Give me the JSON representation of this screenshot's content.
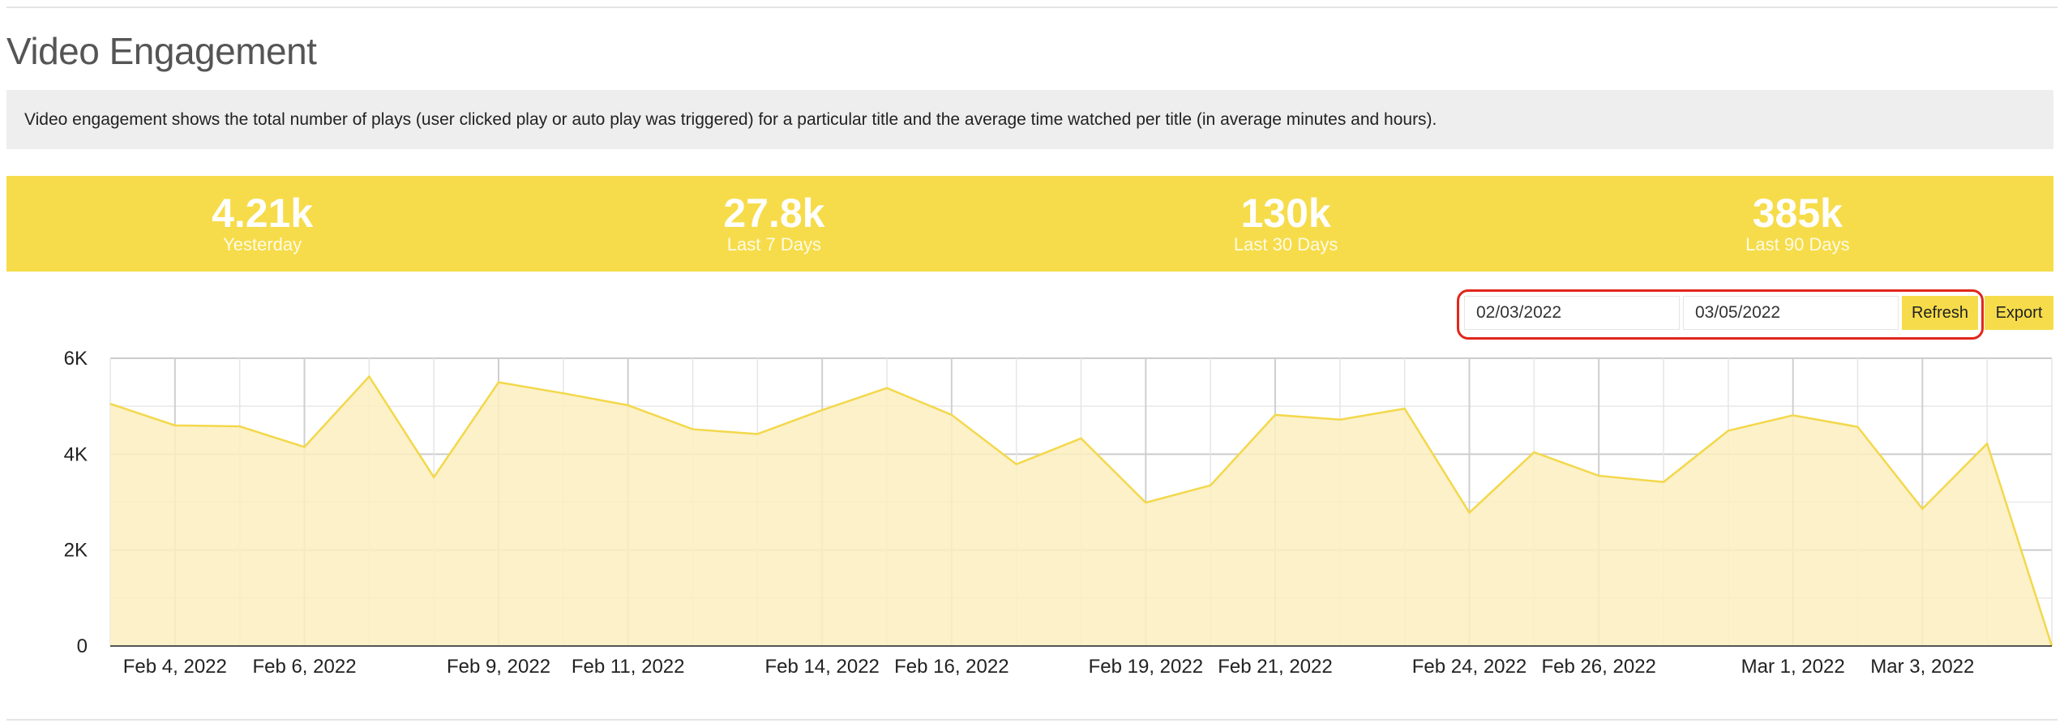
{
  "header": {
    "title": "Video Engagement"
  },
  "description": "Video engagement shows the total number of plays (user clicked play or auto play was triggered) for a particular title and the average time watched per title (in average minutes and hours).",
  "stats": [
    {
      "value": "4.21k",
      "label": "Yesterday"
    },
    {
      "value": "27.8k",
      "label": "Last 7 Days"
    },
    {
      "value": "130k",
      "label": "Last 30 Days"
    },
    {
      "value": "385k",
      "label": "Last 90 Days"
    }
  ],
  "controls": {
    "start_date": "02/03/2022",
    "end_date": "03/05/2022",
    "refresh_label": "Refresh",
    "export_label": "Export",
    "highlight_color": "#e1261c"
  },
  "colors": {
    "accent": "#f6dc4a",
    "line": "#f3d84b",
    "fill": "#fbefc0"
  },
  "chart_data": {
    "type": "area",
    "title": "",
    "xlabel": "",
    "ylabel": "",
    "ylim": [
      0,
      6000
    ],
    "y_ticks": [
      0,
      2000,
      4000,
      6000
    ],
    "y_tick_labels": [
      "0",
      "2K",
      "4K",
      "6K"
    ],
    "grid": true,
    "x": [
      "Feb 3, 2022",
      "Feb 4, 2022",
      "Feb 5, 2022",
      "Feb 6, 2022",
      "Feb 7, 2022",
      "Feb 8, 2022",
      "Feb 9, 2022",
      "Feb 10, 2022",
      "Feb 11, 2022",
      "Feb 12, 2022",
      "Feb 13, 2022",
      "Feb 14, 2022",
      "Feb 15, 2022",
      "Feb 16, 2022",
      "Feb 17, 2022",
      "Feb 18, 2022",
      "Feb 19, 2022",
      "Feb 20, 2022",
      "Feb 21, 2022",
      "Feb 22, 2022",
      "Feb 23, 2022",
      "Feb 24, 2022",
      "Feb 25, 2022",
      "Feb 26, 2022",
      "Feb 27, 2022",
      "Feb 28, 2022",
      "Mar 1, 2022",
      "Mar 2, 2022",
      "Mar 3, 2022",
      "Mar 4, 2022",
      "Mar 5, 2022"
    ],
    "x_tick_labels": [
      {
        "date": "Feb 4, 2022",
        "label": "Feb 4, 2022"
      },
      {
        "date": "Feb 6, 2022",
        "label": "Feb 6, 2022"
      },
      {
        "date": "Feb 9, 2022",
        "label": "Feb 9, 2022"
      },
      {
        "date": "Feb 11, 2022",
        "label": "Feb 11, 2022"
      },
      {
        "date": "Feb 14, 2022",
        "label": "Feb 14, 2022"
      },
      {
        "date": "Feb 16, 2022",
        "label": "Feb 16, 2022"
      },
      {
        "date": "Feb 19, 2022",
        "label": "Feb 19, 2022"
      },
      {
        "date": "Feb 21, 2022",
        "label": "Feb 21, 2022"
      },
      {
        "date": "Feb 24, 2022",
        "label": "Feb 24, 2022"
      },
      {
        "date": "Feb 26, 2022",
        "label": "Feb 26, 2022"
      },
      {
        "date": "Mar 1, 2022",
        "label": "Mar 1, 2022"
      },
      {
        "date": "Mar 3, 2022",
        "label": "Mar 3, 2022"
      }
    ],
    "series": [
      {
        "name": "",
        "values": [
          5050,
          4600,
          4580,
          4150,
          5620,
          3520,
          5500,
          5270,
          5020,
          4520,
          4420,
          4920,
          5380,
          4820,
          3790,
          4330,
          2990,
          3350,
          4820,
          4720,
          4950,
          2780,
          4040,
          3550,
          3420,
          4490,
          4810,
          4570,
          2860,
          4220,
          0
        ]
      }
    ]
  }
}
